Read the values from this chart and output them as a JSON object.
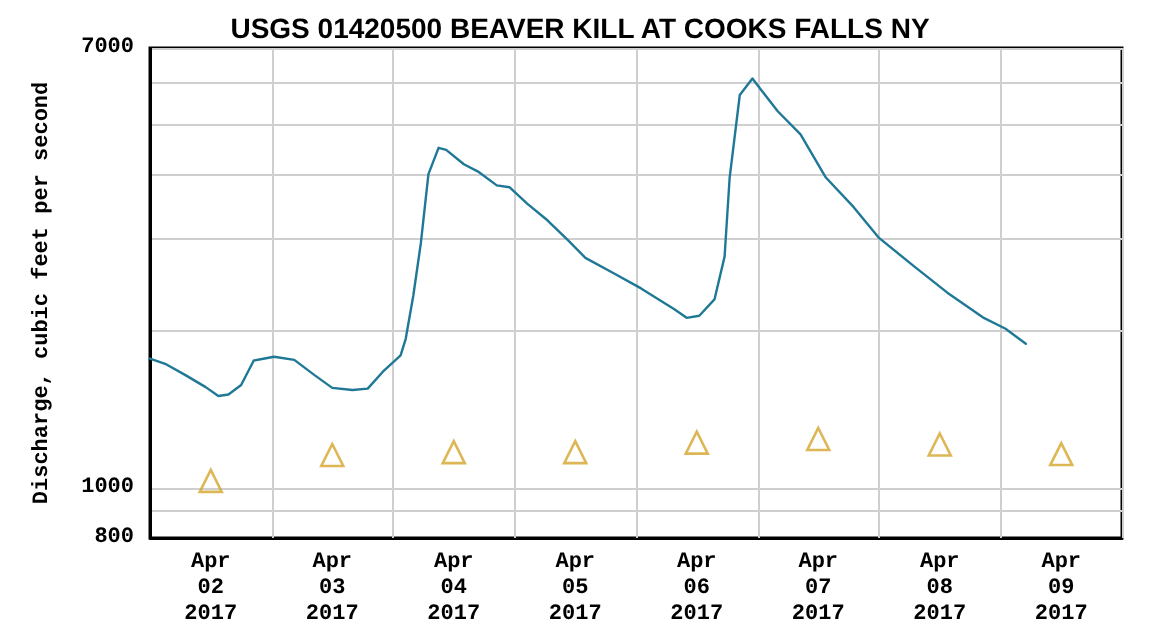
{
  "chart_data": {
    "type": "line",
    "title": "USGS 01420500 BEAVER KILL AT COOKS FALLS NY",
    "ylabel": "Discharge, cubic feet per second",
    "log": "y",
    "grid": true,
    "xlim": [
      "2017-04-02T00:00",
      "2017-04-10T00:00"
    ],
    "xticks": [
      {
        "value": "2017-04-02T00:00",
        "label": null
      },
      {
        "value": "2017-04-02T12:00",
        "label": "Apr 02 2017"
      },
      {
        "value": "2017-04-03T00:00",
        "label": null
      },
      {
        "value": "2017-04-03T12:00",
        "label": "Apr 03 2017"
      },
      {
        "value": "2017-04-04T00:00",
        "label": null
      },
      {
        "value": "2017-04-04T12:00",
        "label": "Apr 04 2017"
      },
      {
        "value": "2017-04-05T00:00",
        "label": null
      },
      {
        "value": "2017-04-05T12:00",
        "label": "Apr 05 2017"
      },
      {
        "value": "2017-04-06T00:00",
        "label": null
      },
      {
        "value": "2017-04-06T12:00",
        "label": "Apr 06 2017"
      },
      {
        "value": "2017-04-07T00:00",
        "label": null
      },
      {
        "value": "2017-04-07T12:00",
        "label": "Apr 07 2017"
      },
      {
        "value": "2017-04-08T00:00",
        "label": null
      },
      {
        "value": "2017-04-08T12:00",
        "label": "Apr 08 2017"
      },
      {
        "value": "2017-04-09T00:00",
        "label": null
      },
      {
        "value": "2017-04-09T12:00",
        "label": "Apr 09 2017"
      },
      {
        "value": "2017-04-10T00:00",
        "label": null
      }
    ],
    "ylim": [
      800,
      7000
    ],
    "yticks": [
      800,
      {
        "value": 900,
        "label": null
      },
      1000,
      {
        "value": 2000,
        "label": null
      },
      {
        "value": 3000,
        "label": null
      },
      {
        "value": 4000,
        "label": null
      },
      {
        "value": 5000,
        "label": null
      },
      {
        "value": 6000,
        "label": null
      },
      7000
    ],
    "series": [
      {
        "color": "#1f7896",
        "marker": "none",
        "line_style": "solid",
        "x": [
          "2017-04-02T00:00",
          "2017-04-02T03:00",
          "2017-04-02T07:00",
          "2017-04-02T11:00",
          "2017-04-02T13:30",
          "2017-04-02T15:30",
          "2017-04-02T18:00",
          "2017-04-02T20:30",
          "2017-04-03T00:30",
          "2017-04-03T04:30",
          "2017-04-03T08:30",
          "2017-04-03T12:00",
          "2017-04-03T16:00",
          "2017-04-03T19:00",
          "2017-04-03T22:00",
          "2017-04-04T01:30",
          "2017-04-04T02:30",
          "2017-04-04T04:00",
          "2017-04-04T05:30",
          "2017-04-04T07:00",
          "2017-04-04T09:00",
          "2017-04-04T10:30",
          "2017-04-04T14:00",
          "2017-04-04T17:00",
          "2017-04-04T20:30",
          "2017-04-04T23:00",
          "2017-04-05T02:30",
          "2017-04-05T06:30",
          "2017-04-05T10:30",
          "2017-04-05T14:00",
          "2017-04-05T19:30",
          "2017-04-06T01:00",
          "2017-04-06T07:30",
          "2017-04-06T10:00",
          "2017-04-06T12:30",
          "2017-04-06T15:30",
          "2017-04-06T17:30",
          "2017-04-06T18:30",
          "2017-04-06T20:30",
          "2017-04-06T23:00",
          "2017-04-07T00:30",
          "2017-04-07T04:00",
          "2017-04-07T08:30",
          "2017-04-07T13:30",
          "2017-04-07T19:00",
          "2017-04-08T00:00",
          "2017-04-08T07:00",
          "2017-04-08T13:30",
          "2017-04-08T20:30",
          "2017-04-09T01:00",
          "2017-04-09T05:00"
        ],
        "values": [
          1770,
          1730,
          1645,
          1560,
          1500,
          1510,
          1575,
          1755,
          1785,
          1760,
          1645,
          1555,
          1540,
          1550,
          1670,
          1795,
          1930,
          2335,
          2950,
          4005,
          4500,
          4460,
          4185,
          4040,
          3810,
          3780,
          3515,
          3265,
          2995,
          2765,
          2585,
          2415,
          2205,
          2120,
          2140,
          2300,
          2780,
          3945,
          5685,
          6115,
          5850,
          5290,
          4775,
          3945,
          3460,
          3020,
          2660,
          2370,
          2125,
          2020,
          1890
        ]
      },
      {
        "type": "scatter",
        "color": "#d4a52a",
        "marker": "triangle",
        "x": [
          "2017-04-02T12:00",
          "2017-04-03T12:00",
          "2017-04-04T12:00",
          "2017-04-05T12:00",
          "2017-04-06T12:00",
          "2017-04-07T12:00",
          "2017-04-08T12:00",
          "2017-04-09T12:00"
        ],
        "values": [
          1030,
          1155,
          1170,
          1170,
          1220,
          1240,
          1210,
          1160
        ]
      }
    ]
  }
}
